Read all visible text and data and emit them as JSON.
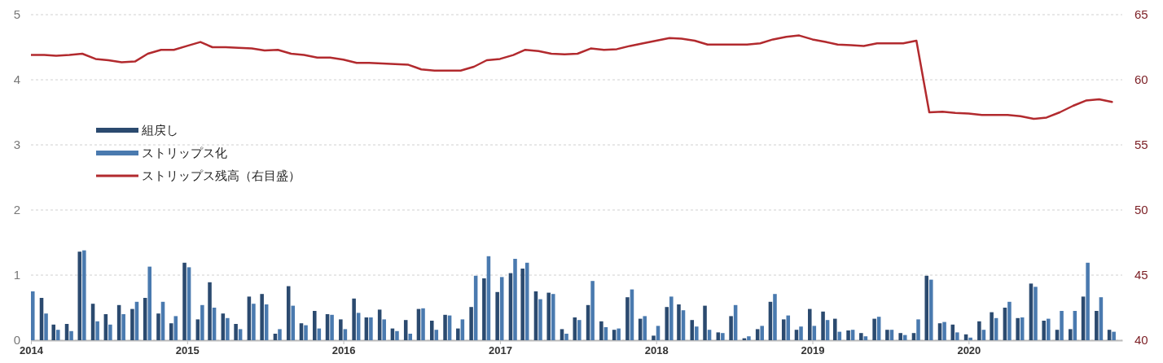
{
  "chart_data": {
    "type": "bar",
    "x": [
      "2014-01",
      "2014-02",
      "2014-03",
      "2014-04",
      "2014-05",
      "2014-06",
      "2014-07",
      "2014-08",
      "2014-09",
      "2014-10",
      "2014-11",
      "2014-12",
      "2015-01",
      "2015-02",
      "2015-03",
      "2015-04",
      "2015-05",
      "2015-06",
      "2015-07",
      "2015-08",
      "2015-09",
      "2015-10",
      "2015-11",
      "2015-12",
      "2016-01",
      "2016-02",
      "2016-03",
      "2016-04",
      "2016-05",
      "2016-06",
      "2016-07",
      "2016-08",
      "2016-09",
      "2016-10",
      "2016-11",
      "2016-12",
      "2017-01",
      "2017-02",
      "2017-03",
      "2017-04",
      "2017-05",
      "2017-06",
      "2017-07",
      "2017-08",
      "2017-09",
      "2017-10",
      "2017-11",
      "2017-12",
      "2018-01",
      "2018-02",
      "2018-03",
      "2018-04",
      "2018-05",
      "2018-06",
      "2018-07",
      "2018-08",
      "2018-09",
      "2018-10",
      "2018-11",
      "2018-12",
      "2019-01",
      "2019-02",
      "2019-03",
      "2019-04",
      "2019-05",
      "2019-06",
      "2019-07",
      "2019-08",
      "2019-09",
      "2019-10",
      "2019-11",
      "2019-12",
      "2020-01",
      "2020-02",
      "2020-03",
      "2020-04",
      "2020-05",
      "2020-06",
      "2020-07",
      "2020-08",
      "2020-09",
      "2020-10",
      "2020-11",
      "2020-12"
    ],
    "series": [
      {
        "name": "組戻し",
        "color": "#2b4a6f",
        "values": [
          null,
          0.65,
          0.24,
          0.25,
          1.36,
          0.56,
          0.4,
          0.54,
          0.48,
          0.65,
          0.41,
          0.26,
          1.19,
          0.32,
          0.89,
          0.41,
          0.25,
          0.67,
          0.71,
          0.1,
          0.83,
          0.26,
          0.45,
          0.4,
          0.32,
          0.64,
          0.35,
          0.47,
          0.18,
          0.31,
          0.48,
          0.3,
          0.39,
          0.18,
          0.51,
          0.95,
          0.74,
          1.03,
          1.1,
          0.75,
          0.73,
          0.17,
          0.35,
          0.54,
          0.29,
          0.16,
          0.66,
          0.33,
          0.07,
          0.51,
          0.55,
          0.31,
          0.53,
          0.12,
          0.37,
          0.03,
          0.17,
          0.59,
          0.32,
          0.16,
          0.48,
          0.44,
          0.33,
          0.15,
          0.11,
          0.33,
          0.16,
          0.11,
          0.11,
          0.99,
          0.26,
          0.24,
          0.09,
          0.29,
          0.43,
          0.5,
          0.34,
          0.87,
          0.3,
          0.16,
          0.17,
          0.67,
          0.45,
          0.16
        ]
      },
      {
        "name": "ストリップス化",
        "color": "#4a7aaf",
        "values": [
          0.75,
          0.41,
          0.16,
          0.14,
          1.38,
          0.29,
          0.24,
          0.4,
          0.59,
          1.13,
          0.59,
          0.37,
          1.12,
          0.54,
          0.5,
          0.34,
          0.17,
          0.56,
          0.55,
          0.17,
          0.53,
          0.23,
          0.18,
          0.39,
          0.17,
          0.42,
          0.35,
          0.32,
          0.14,
          0.1,
          0.49,
          0.16,
          0.38,
          0.32,
          0.99,
          1.29,
          0.97,
          1.25,
          1.19,
          0.63,
          0.71,
          0.1,
          0.31,
          0.91,
          0.2,
          0.18,
          0.78,
          0.37,
          0.22,
          0.67,
          0.46,
          0.21,
          0.16,
          0.11,
          0.54,
          0.06,
          0.22,
          0.71,
          0.38,
          0.21,
          0.22,
          0.31,
          0.13,
          0.16,
          0.06,
          0.36,
          0.16,
          0.08,
          0.32,
          0.93,
          0.28,
          0.12,
          0.04,
          0.16,
          0.34,
          0.59,
          0.35,
          0.82,
          0.33,
          0.45,
          0.45,
          1.19,
          0.66,
          0.13
        ]
      },
      {
        "name": "ストリップス残高（右目盛）",
        "type": "line",
        "axis": "y2",
        "color": "#b22a2e",
        "values": [
          61.9,
          61.9,
          61.85,
          61.9,
          62.0,
          61.6,
          61.5,
          61.35,
          61.4,
          62.0,
          62.3,
          62.3,
          62.6,
          62.9,
          62.5,
          62.5,
          62.45,
          62.4,
          62.25,
          62.3,
          62.0,
          61.9,
          61.7,
          61.7,
          61.55,
          61.3,
          61.3,
          61.25,
          61.2,
          61.15,
          60.8,
          60.7,
          60.7,
          60.7,
          61.0,
          61.5,
          61.6,
          61.9,
          62.3,
          62.2,
          62.0,
          61.95,
          62.0,
          62.4,
          62.3,
          62.35,
          62.6,
          62.8,
          63.0,
          63.2,
          63.15,
          63.0,
          62.7,
          62.7,
          62.7,
          62.7,
          62.8,
          63.1,
          63.3,
          63.4,
          63.1,
          62.9,
          62.7,
          62.65,
          62.6,
          62.8,
          62.8,
          62.8,
          63.0,
          57.5,
          57.55,
          57.45,
          57.4,
          57.3,
          57.3,
          57.3,
          57.2,
          57.0,
          57.1,
          57.5,
          58.0,
          58.4,
          58.5,
          58.3
        ]
      }
    ],
    "xlim": [
      "2014-01-01",
      "2020-12-25"
    ],
    "xticks": [
      "2014",
      "2015",
      "2016",
      "2017",
      "2018",
      "2019",
      "2020"
    ],
    "ylim": [
      0,
      5
    ],
    "yticks": [
      0,
      1,
      2,
      3,
      4,
      5
    ],
    "y2lim": [
      40,
      65
    ],
    "y2ticks": [
      40,
      45,
      50,
      55,
      60,
      65
    ],
    "grid": "y",
    "legend": "left"
  }
}
